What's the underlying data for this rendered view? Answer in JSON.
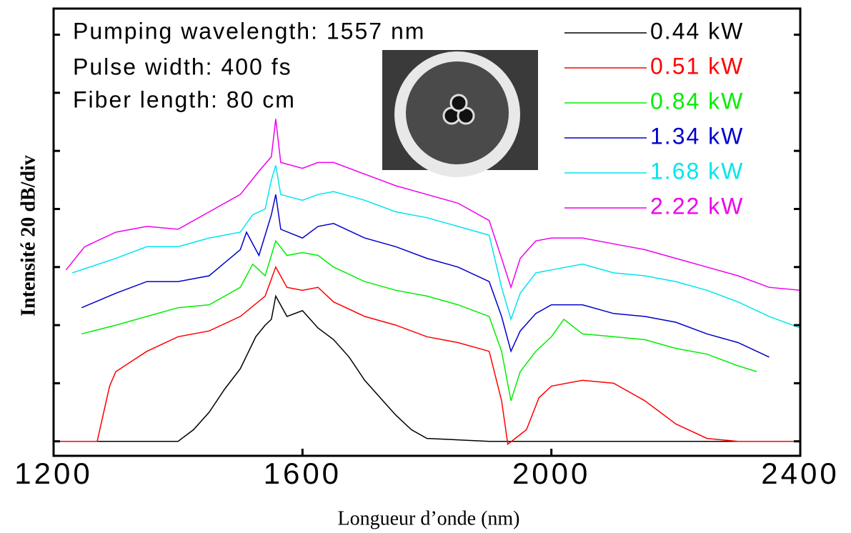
{
  "chart_data": {
    "type": "line",
    "x_label": "Longueur d’onde (nm)",
    "y_label": "Intensité 20 dB/div",
    "annotations": [
      "Pumping wavelength: 1557 nm",
      "Pulse width: 400 fs",
      "Fiber length: 80 cm"
    ],
    "xlim": [
      1200,
      2400
    ],
    "xticks": [
      1200,
      1600,
      2000,
      2400
    ],
    "ylim": [
      -5,
      149
    ],
    "yticks": [
      0,
      20,
      40,
      60,
      80,
      100,
      120,
      140
    ],
    "series": [
      {
        "name": "0.44 kW",
        "color": "#000000",
        "x": [
          1200,
          1300,
          1400,
          1425,
          1450,
          1475,
          1500,
          1525,
          1540,
          1550,
          1557,
          1575,
          1600,
          1625,
          1650,
          1675,
          1700,
          1725,
          1750,
          1775,
          1800,
          1900,
          2000,
          2100,
          2200,
          2300,
          2400
        ],
        "values": [
          0,
          0,
          0,
          4,
          10,
          18,
          25,
          36,
          40,
          42,
          50,
          43,
          45,
          39,
          35,
          29,
          21,
          15,
          9,
          4,
          1,
          0,
          0,
          0,
          0,
          0,
          0
        ]
      },
      {
        "name": "0.51 kW",
        "color": "#ff0000",
        "x": [
          1200,
          1270,
          1290,
          1300,
          1350,
          1400,
          1450,
          1500,
          1540,
          1557,
          1575,
          1600,
          1625,
          1650,
          1700,
          1750,
          1800,
          1850,
          1900,
          1920,
          1930,
          1960,
          1980,
          2000,
          2050,
          2100,
          2150,
          2200,
          2250,
          2300,
          2400
        ],
        "values": [
          0,
          0,
          19,
          24,
          31,
          36,
          38,
          43,
          50,
          60,
          53,
          52,
          53,
          48,
          43,
          40,
          36,
          34,
          31,
          14,
          -1,
          4,
          15,
          19,
          21,
          20,
          14,
          6,
          1,
          0,
          0
        ]
      },
      {
        "name": "0.84 kW",
        "color": "#00ee00",
        "x": [
          1245,
          1300,
          1350,
          1400,
          1450,
          1500,
          1520,
          1540,
          1557,
          1575,
          1600,
          1625,
          1650,
          1700,
          1750,
          1800,
          1850,
          1900,
          1920,
          1935,
          1950,
          1975,
          2000,
          2020,
          2050,
          2100,
          2150,
          2200,
          2250,
          2300,
          2330
        ],
        "values": [
          37,
          40,
          43,
          46,
          47,
          53,
          61,
          57,
          69,
          64,
          65,
          64,
          60,
          55,
          52,
          50,
          47,
          43,
          31,
          14,
          24,
          31,
          36,
          42,
          37,
          36,
          35,
          32,
          30,
          26,
          24
        ]
      },
      {
        "name": "1.34 kW",
        "color": "#0000cc",
        "x": [
          1245,
          1300,
          1350,
          1400,
          1450,
          1500,
          1510,
          1530,
          1550,
          1557,
          1565,
          1600,
          1625,
          1650,
          1700,
          1750,
          1800,
          1850,
          1900,
          1920,
          1935,
          1950,
          1975,
          2000,
          2050,
          2100,
          2150,
          2200,
          2250,
          2300,
          2350
        ],
        "values": [
          46,
          51,
          55,
          55,
          57,
          66,
          72,
          64,
          78,
          85,
          73,
          70,
          74,
          75,
          70,
          67,
          63,
          60,
          55,
          43,
          31,
          38,
          44,
          47,
          47,
          44,
          43,
          41,
          37,
          34,
          29
        ]
      },
      {
        "name": "1.68 kW",
        "color": "#00e5ee",
        "x": [
          1230,
          1300,
          1350,
          1400,
          1450,
          1500,
          1520,
          1540,
          1550,
          1557,
          1565,
          1600,
          1625,
          1650,
          1700,
          1750,
          1800,
          1850,
          1900,
          1920,
          1935,
          1950,
          1975,
          2000,
          2050,
          2100,
          2150,
          2200,
          2250,
          2300,
          2350,
          2400
        ],
        "values": [
          58,
          63,
          67,
          67,
          70,
          72,
          78,
          80,
          90,
          95,
          85,
          83,
          85,
          86,
          83,
          79,
          77,
          74,
          71,
          53,
          42,
          51,
          58,
          59,
          61,
          58,
          57,
          55,
          52,
          48,
          43,
          39
        ]
      },
      {
        "name": "2.22 kW",
        "color": "#ee00ee",
        "x": [
          1220,
          1250,
          1300,
          1350,
          1400,
          1450,
          1500,
          1530,
          1550,
          1557,
          1565,
          1600,
          1625,
          1650,
          1700,
          1750,
          1800,
          1850,
          1900,
          1920,
          1935,
          1950,
          1975,
          2000,
          2050,
          2100,
          2150,
          2200,
          2250,
          2300,
          2350,
          2400
        ],
        "values": [
          59,
          67,
          72,
          74,
          73,
          79,
          85,
          93,
          98,
          111,
          96,
          94,
          96,
          96,
          92,
          88,
          85,
          82,
          76,
          63,
          53,
          63,
          69,
          70,
          70,
          68,
          66,
          63,
          60,
          57,
          53,
          52
        ]
      }
    ]
  }
}
